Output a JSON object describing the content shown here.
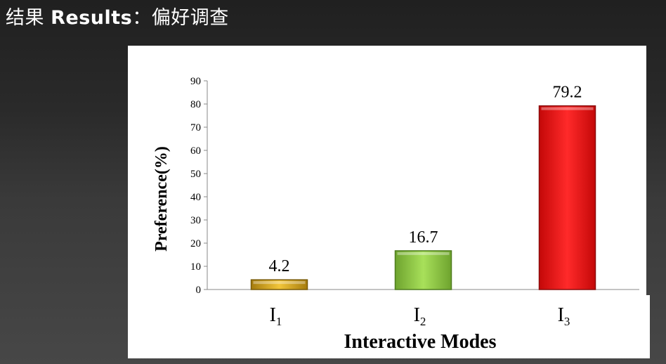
{
  "slide": {
    "title_cn": "结果",
    "title_en": "Results",
    "title_sep": "：",
    "title_cn2": "偏好调查"
  },
  "chart_data": {
    "type": "bar",
    "categories": [
      "I1",
      "I2",
      "I3"
    ],
    "category_labels": [
      {
        "base": "I",
        "sub": "1"
      },
      {
        "base": "I",
        "sub": "2"
      },
      {
        "base": "I",
        "sub": "3"
      }
    ],
    "values": [
      4.2,
      16.7,
      79.2
    ],
    "bar_colors": [
      "#d4a21a",
      "#8fcc45",
      "#ee1111"
    ],
    "bar_edge_colors": [
      "#7a5c08",
      "#4f7d1f",
      "#8a0c0c"
    ],
    "xlabel": "Interactive Modes",
    "ylabel": "Preference(%)",
    "ylim": [
      0,
      90
    ],
    "yticks": [
      0,
      10,
      20,
      30,
      40,
      50,
      60,
      70,
      80,
      90
    ],
    "grid": false,
    "legend": "none",
    "data_labels": [
      "4.2",
      "16.7",
      "79.2"
    ]
  }
}
